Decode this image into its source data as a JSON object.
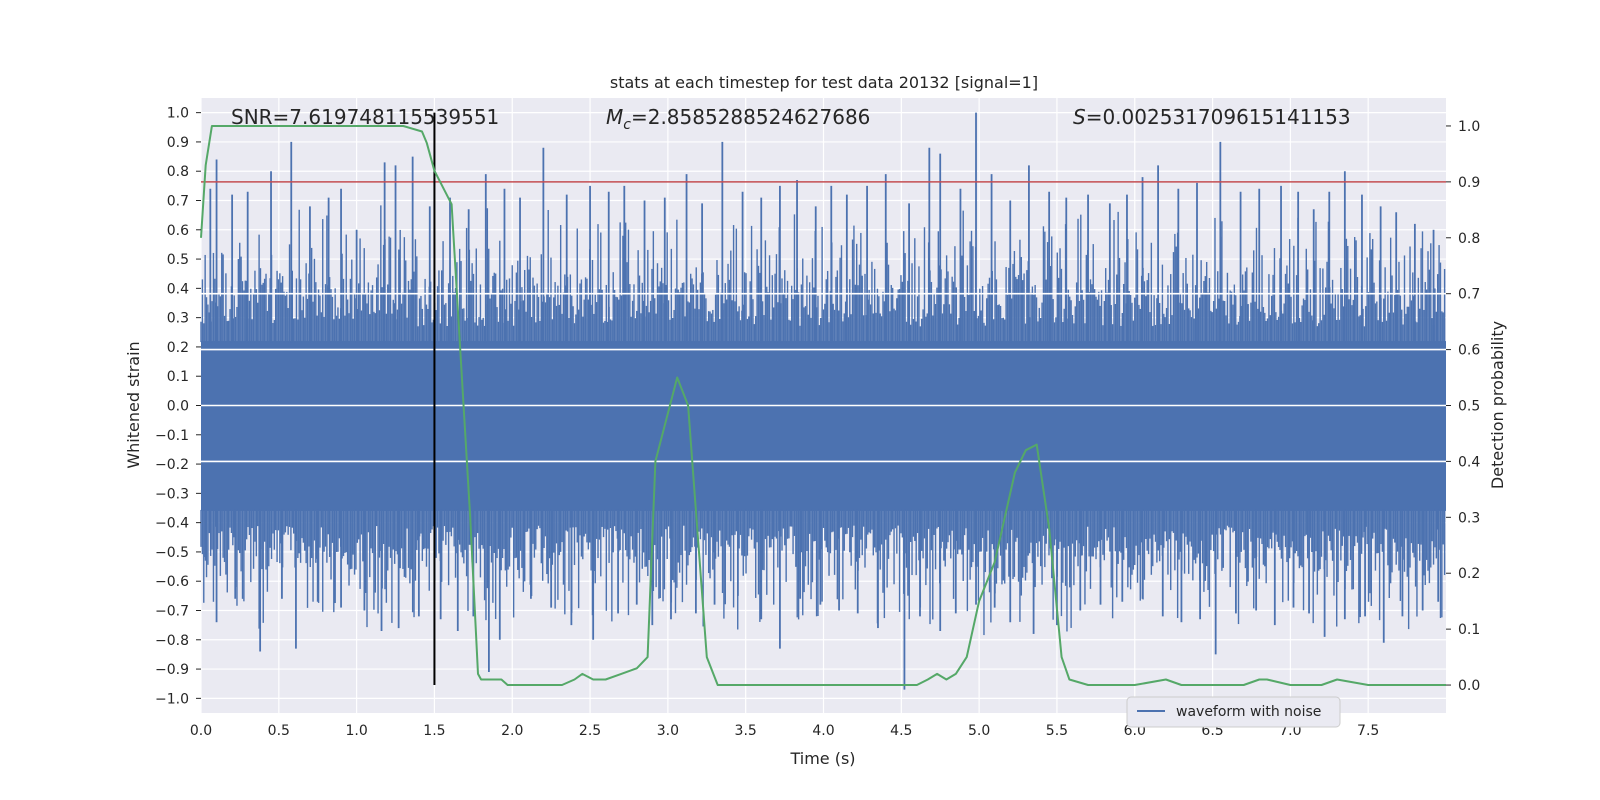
{
  "chart_data": {
    "type": "line",
    "title": "stats at each timestep for test data 20132 [signal=1]",
    "xlabel": "Time (s)",
    "ylabel": "Whitened strain",
    "ylabel_right": "Detection probability",
    "xlim": [
      0,
      8
    ],
    "ylim": [
      -1.05,
      1.05
    ],
    "ylim_right": [
      -0.05,
      1.05
    ],
    "x_ticks": [
      "0.0",
      "0.5",
      "1.0",
      "1.5",
      "2.0",
      "2.5",
      "3.0",
      "3.5",
      "4.0",
      "4.5",
      "5.0",
      "5.5",
      "6.0",
      "6.5",
      "7.0",
      "7.5"
    ],
    "y_ticks": [
      "1.0",
      "0.9",
      "0.8",
      "0.7",
      "0.6",
      "0.5",
      "0.4",
      "0.3",
      "0.2",
      "0.1",
      "0.0",
      "−0.1",
      "−0.2",
      "−0.3",
      "−0.4",
      "−0.5",
      "−0.6",
      "−0.7",
      "−0.8",
      "−0.9",
      "−1.0"
    ],
    "y_right_ticks": [
      "1.0",
      "0.9",
      "0.8",
      "0.7",
      "0.6",
      "0.5",
      "0.4",
      "0.3",
      "0.2",
      "0.1",
      "0.0"
    ],
    "annotations": {
      "snr": "SNR=7.619748115539551",
      "mc_symbol": "M",
      "mc_sub": "c",
      "mc_value": "=2.8585288524627686",
      "s_symbol": "S",
      "s_value": "=0.002531709615141153"
    },
    "legend": {
      "label": "waveform with noise",
      "position": "lower-center"
    },
    "threshold_right": 0.9,
    "vline_x": 1.5,
    "grid": true,
    "colors": {
      "waveform": "#4c72b0",
      "probability": "#55a868",
      "threshold": "#c44e52",
      "vline": "#000000",
      "background": "#eaeaf2",
      "grid": "#ffffff"
    },
    "series": [
      {
        "name": "waveform with noise",
        "band": {
          "x_start": 0.0,
          "x_end": 8.0,
          "upper": 0.22,
          "lower": -0.36
        },
        "spikes_up": [
          [
            0.06,
            0.74
          ],
          [
            0.1,
            0.84
          ],
          [
            0.2,
            0.72
          ],
          [
            0.3,
            0.73
          ],
          [
            0.45,
            0.8
          ],
          [
            0.58,
            0.9
          ],
          [
            0.7,
            0.68
          ],
          [
            0.82,
            0.71
          ],
          [
            0.9,
            0.74
          ],
          [
            1.0,
            0.6
          ],
          [
            1.18,
            0.83
          ],
          [
            1.25,
            0.82
          ],
          [
            1.36,
            0.85
          ],
          [
            1.47,
            0.68
          ],
          [
            1.6,
            0.71
          ],
          [
            1.72,
            0.67
          ],
          [
            1.83,
            0.79
          ],
          [
            1.95,
            0.74
          ],
          [
            2.05,
            0.71
          ],
          [
            2.2,
            0.88
          ],
          [
            2.35,
            0.72
          ],
          [
            2.5,
            0.75
          ],
          [
            2.62,
            0.73
          ],
          [
            2.72,
            0.75
          ],
          [
            2.85,
            0.7
          ],
          [
            2.98,
            0.71
          ],
          [
            3.12,
            0.79
          ],
          [
            3.22,
            0.69
          ],
          [
            3.35,
            0.9
          ],
          [
            3.48,
            0.73
          ],
          [
            3.6,
            0.71
          ],
          [
            3.72,
            0.75
          ],
          [
            3.83,
            0.77
          ],
          [
            3.95,
            0.68
          ],
          [
            4.05,
            0.75
          ],
          [
            4.15,
            0.72
          ],
          [
            4.28,
            0.75
          ],
          [
            4.4,
            0.79
          ],
          [
            4.55,
            0.69
          ],
          [
            4.68,
            0.88
          ],
          [
            4.75,
            0.86
          ],
          [
            4.88,
            0.74
          ],
          [
            4.98,
            1.0
          ],
          [
            5.08,
            0.79
          ],
          [
            5.2,
            0.7
          ],
          [
            5.32,
            0.82
          ],
          [
            5.45,
            0.73
          ],
          [
            5.56,
            0.71
          ],
          [
            5.7,
            0.72
          ],
          [
            5.84,
            0.69
          ],
          [
            5.95,
            0.72
          ],
          [
            6.05,
            0.78
          ],
          [
            6.15,
            0.82
          ],
          [
            6.28,
            0.74
          ],
          [
            6.4,
            0.76
          ],
          [
            6.55,
            0.9
          ],
          [
            6.68,
            0.73
          ],
          [
            6.8,
            0.74
          ],
          [
            6.94,
            0.75
          ],
          [
            7.05,
            0.73
          ],
          [
            7.15,
            0.67
          ],
          [
            7.25,
            0.73
          ],
          [
            7.35,
            0.8
          ],
          [
            7.46,
            0.72
          ],
          [
            7.58,
            0.68
          ],
          [
            7.68,
            0.66
          ],
          [
            7.8,
            0.62
          ],
          [
            7.92,
            0.6
          ]
        ],
        "spikes_down": [
          [
            0.03,
            -0.53
          ],
          [
            0.1,
            -0.74
          ],
          [
            0.22,
            -0.66
          ],
          [
            0.38,
            -0.84
          ],
          [
            0.52,
            -0.66
          ],
          [
            0.61,
            -0.83
          ],
          [
            0.75,
            -0.67
          ],
          [
            0.9,
            -0.69
          ],
          [
            1.05,
            -0.7
          ],
          [
            1.16,
            -0.77
          ],
          [
            1.27,
            -0.76
          ],
          [
            1.4,
            -0.72
          ],
          [
            1.54,
            -0.73
          ],
          [
            1.65,
            -0.77
          ],
          [
            1.75,
            -0.72
          ],
          [
            1.85,
            -0.91
          ],
          [
            1.92,
            -0.8
          ],
          [
            2.12,
            -0.66
          ],
          [
            2.25,
            -0.69
          ],
          [
            2.38,
            -0.75
          ],
          [
            2.52,
            -0.8
          ],
          [
            2.68,
            -0.71
          ],
          [
            2.8,
            -0.68
          ],
          [
            2.9,
            -0.75
          ],
          [
            3.02,
            -0.73
          ],
          [
            3.18,
            -0.71
          ],
          [
            3.3,
            -0.68
          ],
          [
            3.45,
            -0.65
          ],
          [
            3.6,
            -0.73
          ],
          [
            3.72,
            -0.83
          ],
          [
            3.85,
            -0.66
          ],
          [
            3.98,
            -0.68
          ],
          [
            4.1,
            -0.7
          ],
          [
            4.22,
            -0.71
          ],
          [
            4.35,
            -0.76
          ],
          [
            4.52,
            -0.97
          ],
          [
            4.62,
            -0.72
          ],
          [
            4.75,
            -0.77
          ],
          [
            4.85,
            -0.71
          ],
          [
            4.98,
            -0.68
          ],
          [
            5.1,
            -0.69
          ],
          [
            5.2,
            -0.74
          ],
          [
            5.35,
            -0.78
          ],
          [
            5.5,
            -0.75
          ],
          [
            5.65,
            -0.7
          ],
          [
            5.78,
            -0.68
          ],
          [
            5.92,
            -0.67
          ],
          [
            6.05,
            -0.66
          ],
          [
            6.18,
            -0.72
          ],
          [
            6.3,
            -0.74
          ],
          [
            6.42,
            -0.73
          ],
          [
            6.52,
            -0.85
          ],
          [
            6.65,
            -0.71
          ],
          [
            6.78,
            -0.7
          ],
          [
            6.9,
            -0.75
          ],
          [
            7.02,
            -0.69
          ],
          [
            7.12,
            -0.71
          ],
          [
            7.22,
            -0.79
          ],
          [
            7.35,
            -0.73
          ],
          [
            7.48,
            -0.72
          ],
          [
            7.6,
            -0.81
          ],
          [
            7.72,
            -0.72
          ],
          [
            7.85,
            -0.7
          ],
          [
            7.95,
            -0.67
          ]
        ]
      },
      {
        "name": "detection probability",
        "axis": "right",
        "x": [
          0.0,
          0.03,
          0.07,
          0.15,
          0.3,
          0.6,
          1.0,
          1.3,
          1.42,
          1.45,
          1.5,
          1.61,
          1.73,
          1.78,
          1.8,
          1.84,
          1.87,
          1.93,
          1.97,
          2.03,
          2.1,
          2.2,
          2.32,
          2.4,
          2.45,
          2.52,
          2.6,
          2.7,
          2.8,
          2.87,
          2.92,
          3.06,
          3.13,
          3.25,
          3.32,
          3.35,
          3.4,
          3.45,
          3.5,
          3.6,
          3.75,
          3.85,
          4.0,
          4.2,
          4.35,
          4.45,
          4.52,
          4.6,
          4.67,
          4.73,
          4.79,
          4.85,
          4.92,
          5.0,
          5.1,
          5.23,
          5.3,
          5.37,
          5.45,
          5.53,
          5.58,
          5.7,
          6.0,
          6.2,
          6.3,
          6.5,
          6.7,
          6.8,
          6.85,
          7.0,
          7.2,
          7.3,
          7.5,
          7.7,
          7.9,
          8.0
        ],
        "y": [
          0.8,
          0.93,
          1.0,
          1.0,
          1.0,
          1.0,
          1.0,
          1.0,
          0.99,
          0.97,
          0.92,
          0.86,
          0.3,
          0.02,
          0.01,
          0.01,
          0.01,
          0.01,
          0.0,
          0.0,
          0.0,
          0.0,
          0.0,
          0.01,
          0.02,
          0.01,
          0.01,
          0.02,
          0.03,
          0.05,
          0.4,
          0.55,
          0.5,
          0.05,
          0.0,
          0.0,
          0.0,
          0.0,
          0.0,
          0.0,
          0.0,
          0.0,
          0.0,
          0.0,
          0.0,
          0.0,
          0.0,
          0.0,
          0.01,
          0.02,
          0.01,
          0.02,
          0.05,
          0.15,
          0.22,
          0.38,
          0.42,
          0.43,
          0.28,
          0.05,
          0.01,
          0.0,
          0.0,
          0.01,
          0.0,
          0.0,
          0.0,
          0.01,
          0.01,
          0.0,
          0.0,
          0.01,
          0.0,
          0.0,
          0.0,
          0.0
        ]
      }
    ]
  }
}
